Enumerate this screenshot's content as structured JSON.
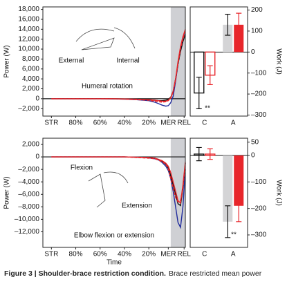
{
  "chart_data": [
    {
      "type": "line",
      "ylabel": "Power (W)",
      "xlim": [
        -7,
        110
      ],
      "ylim": [
        -3500,
        18500
      ],
      "xticks": [
        {
          "value": 0,
          "label": "STR"
        },
        {
          "value": 20,
          "label": "80%"
        },
        {
          "value": 40,
          "label": "60%"
        },
        {
          "value": 60,
          "label": "40%"
        },
        {
          "value": 80,
          "label": "20%"
        },
        {
          "value": 96,
          "label": "MER"
        },
        {
          "value": 109,
          "label": "REL"
        }
      ],
      "yticks": [
        {
          "value": -2000,
          "label": "–2,000"
        },
        0,
        {
          "value": 2000,
          "label": "2,000"
        },
        {
          "value": 4000,
          "label": "4,000"
        },
        {
          "value": 6000,
          "label": "6,000"
        },
        {
          "value": 8000,
          "label": "8,000"
        },
        {
          "value": 10000,
          "label": "10,000"
        },
        {
          "value": 12000,
          "label": "12,000"
        },
        {
          "value": 14000,
          "label": "14,000"
        },
        {
          "value": 16000,
          "label": "16,000"
        },
        {
          "value": 18000,
          "label": "18,000"
        }
      ],
      "shade": [
        98,
        110
      ],
      "zero_line": true,
      "annotations": [
        "External",
        "Internal",
        "Humeral rotation"
      ],
      "x": [
        0,
        10,
        20,
        30,
        40,
        50,
        60,
        70,
        80,
        85,
        88,
        91,
        94,
        96,
        98,
        100,
        102,
        104,
        106,
        108,
        110
      ],
      "series": [
        {
          "color": "#1f2a9c",
          "dash": false,
          "values": [
            0,
            0,
            0,
            0,
            0,
            -50,
            -100,
            -200,
            -400,
            -700,
            -1000,
            -1300,
            -1500,
            -1400,
            -800,
            500,
            3500,
            7000,
            10000,
            12500,
            13000
          ]
        },
        {
          "color": "#111111",
          "dash": false,
          "values": [
            0,
            0,
            0,
            0,
            0,
            0,
            -50,
            -100,
            -200,
            -300,
            -400,
            -400,
            -300,
            -100,
            300,
            1500,
            4000,
            7000,
            9500,
            11500,
            13000
          ]
        },
        {
          "color": "#e8262b",
          "dash": true,
          "values": [
            0,
            0,
            0,
            0,
            0,
            0,
            -100,
            -200,
            -300,
            -500,
            -600,
            -700,
            -600,
            -400,
            100,
            1300,
            3800,
            7000,
            10000,
            12000,
            13500
          ]
        },
        {
          "color": "#e8262b",
          "dash": false,
          "values": [
            0,
            0,
            0,
            0,
            0,
            0,
            -50,
            -100,
            -200,
            -300,
            -400,
            -500,
            -500,
            -300,
            200,
            1500,
            4000,
            7500,
            10500,
            12500,
            14000
          ]
        }
      ]
    },
    {
      "type": "bar",
      "ylabel": "Work (J)",
      "ylim": [
        -305,
        215
      ],
      "yticks": [
        {
          "value": -300,
          "label": "–300"
        },
        {
          "value": -200,
          "label": "–200"
        },
        {
          "value": -100,
          "label": "–100"
        },
        0,
        100,
        200
      ],
      "categories": [
        "C",
        "A"
      ],
      "hollow": [
        true,
        false
      ],
      "annotations": [
        "**"
      ],
      "series": [
        {
          "color": "#111111",
          "fill": "#d4d4d6",
          "values": [
            -195,
            130
          ],
          "errors": [
            75,
            50
          ]
        },
        {
          "color": "#e8262b",
          "fill": "#e8262b",
          "values": [
            -110,
            130
          ],
          "errors": [
            45,
            55
          ]
        }
      ]
    },
    {
      "type": "line",
      "ylabel": "Power (W)",
      "xlabel": "Time",
      "xlim": [
        -7,
        110
      ],
      "ylim": [
        -14500,
        3000
      ],
      "xticks": [
        {
          "value": 0,
          "label": "STR"
        },
        {
          "value": 20,
          "label": "80%"
        },
        {
          "value": 40,
          "label": "60%"
        },
        {
          "value": 60,
          "label": "40%"
        },
        {
          "value": 80,
          "label": "20%"
        },
        {
          "value": 96,
          "label": "MER"
        },
        {
          "value": 109,
          "label": "REL"
        }
      ],
      "yticks": [
        {
          "value": -12000,
          "label": "–12,000"
        },
        {
          "value": -10000,
          "label": "–10,000"
        },
        {
          "value": -8000,
          "label": "–8,000"
        },
        {
          "value": -6000,
          "label": "–6,000"
        },
        {
          "value": -4000,
          "label": "–4,000"
        },
        {
          "value": -2000,
          "label": "–2,000"
        },
        0,
        {
          "value": 2000,
          "label": "2,000"
        }
      ],
      "shade": [
        98,
        110
      ],
      "zero_line": true,
      "annotations": [
        "Flexion",
        "Extension",
        "Elbow flexion or extension"
      ],
      "x": [
        0,
        10,
        20,
        30,
        40,
        50,
        60,
        70,
        80,
        85,
        88,
        91,
        94,
        96,
        98,
        100,
        102,
        104,
        106,
        108,
        110
      ],
      "series": [
        {
          "color": "#1f2a9c",
          "dash": false,
          "values": [
            0,
            0,
            0,
            0,
            0,
            0,
            0,
            -50,
            -150,
            -300,
            -500,
            -900,
            -1500,
            -2200,
            -3500,
            -5500,
            -8000,
            -10500,
            -11300,
            -8000,
            -2000
          ]
        },
        {
          "color": "#111111",
          "dash": false,
          "values": [
            0,
            0,
            0,
            0,
            0,
            0,
            0,
            -50,
            -100,
            -200,
            -400,
            -700,
            -1200,
            -1800,
            -3000,
            -4500,
            -6000,
            -7500,
            -7800,
            -5000,
            -1000
          ]
        },
        {
          "color": "#e8262b",
          "dash": true,
          "values": [
            0,
            0,
            0,
            0,
            0,
            0,
            0,
            -100,
            -200,
            -300,
            -500,
            -800,
            -1200,
            -2000,
            -3500,
            -5000,
            -6500,
            -7200,
            -7000,
            -5000,
            -1200
          ]
        },
        {
          "color": "#e8262b",
          "dash": false,
          "values": [
            0,
            0,
            0,
            0,
            0,
            0,
            0,
            -50,
            -100,
            -200,
            -400,
            -600,
            -1000,
            -1500,
            -2500,
            -4000,
            -5500,
            -7000,
            -7400,
            -4500,
            -800
          ]
        }
      ]
    },
    {
      "type": "bar",
      "ylabel": "Work (J)",
      "ylim": [
        -347,
        65
      ],
      "yticks": [
        {
          "value": -300,
          "label": "–300"
        },
        {
          "value": -200,
          "label": "–200"
        },
        {
          "value": -100,
          "label": "–100"
        },
        0,
        50
      ],
      "categories": [
        "C",
        "A"
      ],
      "hollow": [
        true,
        false
      ],
      "annotations": [
        "**"
      ],
      "series": [
        {
          "color": "#111111",
          "fill": "#d4d4d6",
          "values": [
            5,
            -250
          ],
          "errors": [
            25,
            60
          ]
        },
        {
          "color": "#e8262b",
          "fill": "#e8262b",
          "values": [
            5,
            -190
          ],
          "errors": [
            20,
            60
          ]
        }
      ]
    }
  ],
  "caption": {
    "bold": "Figure 3 | Shoulder-brace restriction condition.",
    "text": "Brace restricted mean power"
  }
}
